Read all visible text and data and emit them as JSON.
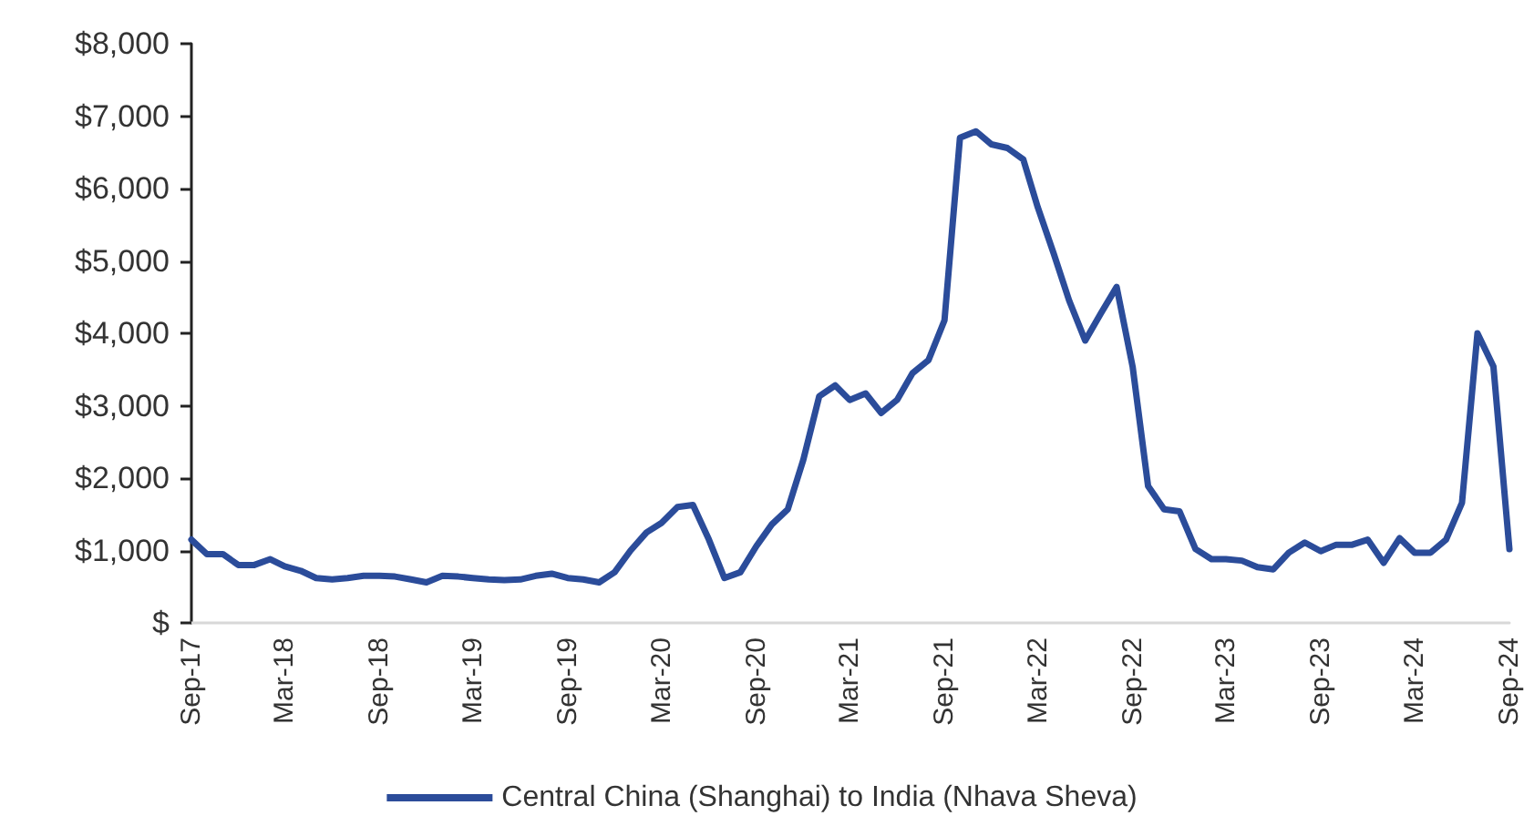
{
  "chart_data": {
    "type": "line",
    "xlim": [
      "2017-09",
      "2024-09"
    ],
    "xticks": [
      {
        "value": "2017-09",
        "label": "Sep-17"
      },
      {
        "value": "2018-03",
        "label": "Mar-18"
      },
      {
        "value": "2018-09",
        "label": "Sep-18"
      },
      {
        "value": "2019-03",
        "label": "Mar-19"
      },
      {
        "value": "2019-09",
        "label": "Sep-19"
      },
      {
        "value": "2020-03",
        "label": "Mar-20"
      },
      {
        "value": "2020-09",
        "label": "Sep-20"
      },
      {
        "value": "2021-03",
        "label": "Mar-21"
      },
      {
        "value": "2021-09",
        "label": "Sep-21"
      },
      {
        "value": "2022-03",
        "label": "Mar-22"
      },
      {
        "value": "2022-09",
        "label": "Sep-22"
      },
      {
        "value": "2023-03",
        "label": "Mar-23"
      },
      {
        "value": "2023-09",
        "label": "Sep-23"
      },
      {
        "value": "2024-03",
        "label": "Mar-24"
      },
      {
        "value": "2024-09",
        "label": "Sep-24"
      }
    ],
    "ylim": [
      0,
      8000
    ],
    "yticks": [
      {
        "value": 0,
        "label": "$"
      },
      {
        "value": 1000,
        "label": "$1,000"
      },
      {
        "value": 2000,
        "label": "$2,000"
      },
      {
        "value": 3000,
        "label": "$3,000"
      },
      {
        "value": 4000,
        "label": "$4,000"
      },
      {
        "value": 5000,
        "label": "$5,000"
      },
      {
        "value": 6000,
        "label": "$6,000"
      },
      {
        "value": 7000,
        "label": "$7,000"
      },
      {
        "value": 8000,
        "label": "$8,000"
      }
    ],
    "x": [
      "2017-09",
      "2017-10",
      "2017-11",
      "2017-12",
      "2018-01",
      "2018-02",
      "2018-03",
      "2018-04",
      "2018-05",
      "2018-06",
      "2018-07",
      "2018-08",
      "2018-09",
      "2018-10",
      "2018-11",
      "2018-12",
      "2019-01",
      "2019-02",
      "2019-03",
      "2019-04",
      "2019-05",
      "2019-06",
      "2019-07",
      "2019-08",
      "2019-09",
      "2019-10",
      "2019-11",
      "2019-12",
      "2020-01",
      "2020-02",
      "2020-03",
      "2020-04",
      "2020-05",
      "2020-06",
      "2020-07",
      "2020-08",
      "2020-09",
      "2020-10",
      "2020-11",
      "2020-12",
      "2021-01",
      "2021-02",
      "2021-03",
      "2021-04",
      "2021-05",
      "2021-06",
      "2021-07",
      "2021-08",
      "2021-09",
      "2021-10",
      "2021-11",
      "2021-12",
      "2022-01",
      "2022-02",
      "2022-03",
      "2022-04",
      "2022-05",
      "2022-06",
      "2022-07",
      "2022-08",
      "2022-09",
      "2022-10",
      "2022-11",
      "2022-12",
      "2023-01",
      "2023-02",
      "2023-03",
      "2023-04",
      "2023-05",
      "2023-06",
      "2023-07",
      "2023-08",
      "2023-09",
      "2023-10",
      "2023-11",
      "2023-12",
      "2024-01",
      "2024-02",
      "2024-03",
      "2024-04",
      "2024-05",
      "2024-06",
      "2024-07",
      "2024-08",
      "2024-09"
    ],
    "series": [
      {
        "name": "Central China (Shanghai) to India (Nhava Sheva)",
        "color": "#2b4c9a",
        "values": [
          1150,
          950,
          950,
          800,
          800,
          880,
          780,
          720,
          620,
          600,
          620,
          650,
          650,
          640,
          600,
          560,
          650,
          640,
          620,
          600,
          590,
          600,
          650,
          680,
          620,
          600,
          560,
          700,
          1000,
          1250,
          1380,
          1600,
          1630,
          1150,
          620,
          700,
          1060,
          1360,
          1570,
          2250,
          3130,
          3280,
          3080,
          3170,
          2900,
          3080,
          3450,
          3630,
          4180,
          6700,
          6790,
          6610,
          6560,
          6400,
          5740,
          5100,
          4450,
          3900,
          4270,
          4640,
          3540,
          1890,
          1570,
          1540,
          1020,
          880,
          880,
          860,
          770,
          740,
          970,
          1110,
          990,
          1080,
          1080,
          1150,
          830,
          1170,
          970,
          970,
          1150,
          1660,
          4000,
          3540,
          1020
        ]
      }
    ],
    "grid": false,
    "legend": "bottom",
    "marker": "none",
    "line_style": "solid"
  }
}
